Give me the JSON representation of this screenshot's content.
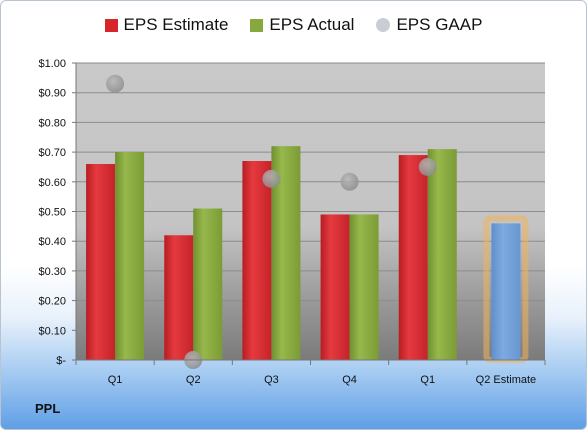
{
  "chart_data": {
    "type": "bar",
    "categories": [
      "Q1",
      "Q2",
      "Q3",
      "Q4",
      "Q1",
      "Q2 Estimate"
    ],
    "series": [
      {
        "name": "EPS Estimate",
        "color": "#d6262b",
        "values": [
          0.66,
          0.42,
          0.67,
          0.49,
          0.69,
          null
        ]
      },
      {
        "name": "EPS Actual",
        "color": "#86a83e",
        "values": [
          0.7,
          0.51,
          0.72,
          0.49,
          0.71,
          0.46
        ]
      },
      {
        "name": "EPS GAAP",
        "color": "#9a9a9a",
        "kind": "scatter",
        "values": [
          0.93,
          0.0,
          0.61,
          0.6,
          0.65,
          null
        ]
      }
    ],
    "highlight": {
      "category": "Q2 Estimate",
      "value": 0.46,
      "color": "#6f9fd6",
      "glow": "#f2b25a"
    },
    "yticks": [
      "$-",
      "$0.10",
      "$0.20",
      "$0.30",
      "$0.40",
      "$0.50",
      "$0.60",
      "$0.70",
      "$0.80",
      "$0.90",
      "$1.00"
    ],
    "ylim": [
      0,
      1.0
    ],
    "legend_position": "top",
    "grid": true
  },
  "company": "PPL"
}
